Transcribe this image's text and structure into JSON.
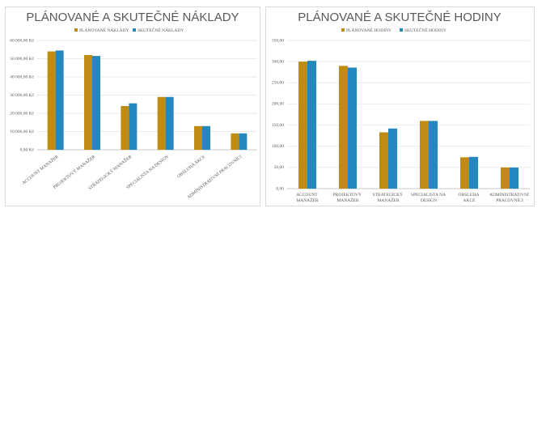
{
  "chart_data": [
    {
      "type": "bar",
      "title": "PLÁNOVANÉ A SKUTEČNÉ NÁKLADY",
      "categories": [
        "ACCOUNT MANAŽER",
        "PROJEKTOVÝ MANAŽER",
        "STRATEGICKÝ MANAŽER",
        "SPECIALISTA NA DESIGN",
        "OBSLUHA AKCE",
        "ADMINISTRATIVNÍ PRACOVNÍCI"
      ],
      "series": [
        {
          "name": "PLÁNOVANÉ NÁKLADY",
          "color": "#bf8b12",
          "values": [
            54000,
            52000,
            24000,
            29000,
            13000,
            9000
          ]
        },
        {
          "name": "SKUTEČNÉ NÁKLADY",
          "color": "#2388bd",
          "values": [
            54500,
            51500,
            25500,
            29000,
            13000,
            9000
          ]
        }
      ],
      "ylim": [
        0,
        60000
      ],
      "yticks": [
        {
          "value": 0,
          "label": "0,00 Kč"
        },
        {
          "value": 10000,
          "label": "10 000,00 Kč"
        },
        {
          "value": 20000,
          "label": "20 000,00 Kč"
        },
        {
          "value": 30000,
          "label": "30 000,00 Kč"
        },
        {
          "value": 40000,
          "label": "40 000,00 Kč"
        },
        {
          "value": 50000,
          "label": "50 000,00 Kč"
        },
        {
          "value": 60000,
          "label": "60 000,00 Kč"
        }
      ],
      "grid": true,
      "legend": "top"
    },
    {
      "type": "bar",
      "title": "PLÁNOVANÉ A SKUTEČNÉ HODINY",
      "categories": [
        "ACCOUNT MANAŽER",
        "PROJEKTOVÝ MANAŽER",
        "STRATEGICKÝ MANAŽER",
        "SPECIALISTA NA DESIGN",
        "OBSLUHA AKCE",
        "ADMINISTRATIVNÍ PRACOVNÍCI"
      ],
      "series": [
        {
          "name": "PLÁNOVANÉ HODINY",
          "color": "#bf8b12",
          "values": [
            300,
            290,
            133,
            160,
            74,
            50
          ]
        },
        {
          "name": "SKUTEČNÉ HODINY",
          "color": "#2388bd",
          "values": [
            302,
            286,
            142,
            160,
            75,
            50
          ]
        }
      ],
      "ylim": [
        0,
        350
      ],
      "yticks": [
        {
          "value": 0,
          "label": "0,00"
        },
        {
          "value": 50,
          "label": "50,00"
        },
        {
          "value": 100,
          "label": "100,00"
        },
        {
          "value": 150,
          "label": "150,00"
        },
        {
          "value": 200,
          "label": "200,00"
        },
        {
          "value": 250,
          "label": "250,00"
        },
        {
          "value": 300,
          "label": "300,00"
        },
        {
          "value": 350,
          "label": "350,00"
        }
      ],
      "grid": true,
      "legend": "top"
    }
  ]
}
